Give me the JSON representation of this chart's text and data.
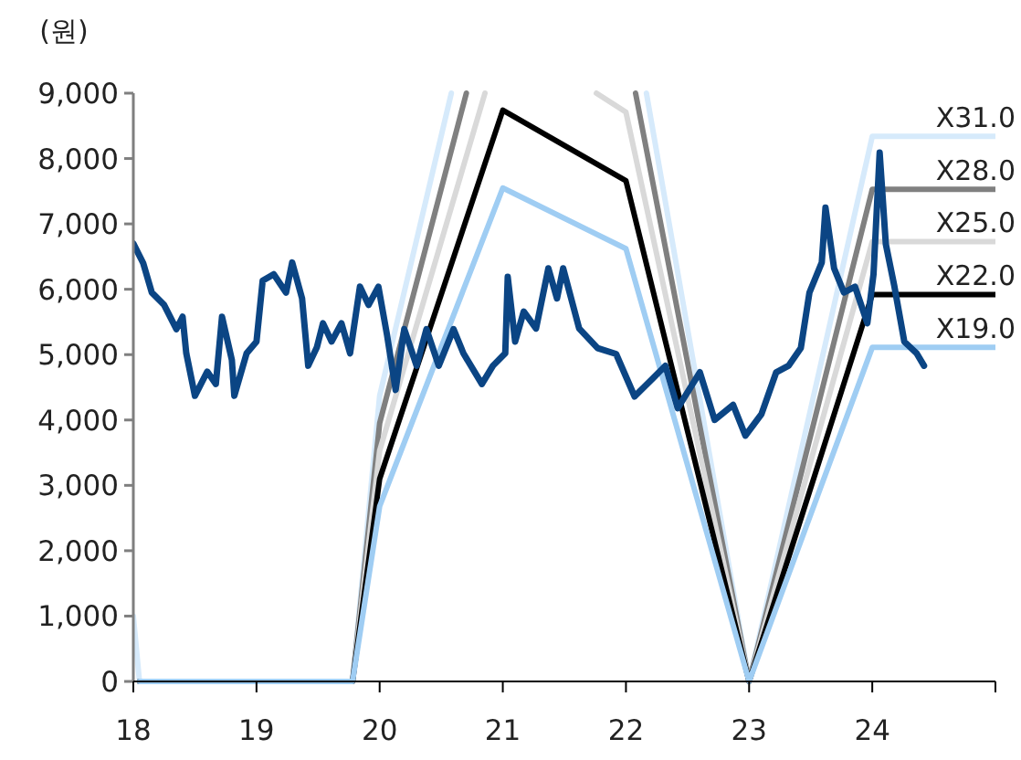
{
  "chart_data": {
    "type": "line",
    "ylabel": "(원)",
    "xlim": [
      18,
      25
    ],
    "ylim": [
      0,
      9000
    ],
    "xticks": [
      18,
      19,
      20,
      21,
      22,
      23,
      24,
      {
        "value": 25,
        "label": null
      }
    ],
    "yticks": [
      0,
      {
        "value": 1000,
        "label": "1,000"
      },
      {
        "value": 2000,
        "label": "2,000"
      },
      {
        "value": 3000,
        "label": "3,000"
      },
      {
        "value": 4000,
        "label": "4,000"
      },
      {
        "value": 5000,
        "label": "5,000"
      },
      {
        "value": 6000,
        "label": "6,000"
      },
      {
        "value": 7000,
        "label": "7,000"
      },
      {
        "value": 8000,
        "label": "8,000"
      },
      {
        "value": 9000,
        "label": "9,000"
      }
    ],
    "grid": false,
    "marker": "none",
    "line_style": "solid",
    "series": [
      {
        "name": "X31.0",
        "color": "#d6eafb",
        "x": [
          18,
          18.05,
          19.78,
          20,
          20.582,
          22.166,
          23,
          24,
          25
        ],
        "values": [
          1000,
          0,
          0,
          4370,
          9000,
          9000,
          0,
          8340,
          8340
        ]
      },
      {
        "name": "X28.0",
        "color": "#808080",
        "x": [
          18.05,
          19.78,
          20,
          20.704,
          22.078,
          23,
          24,
          25
        ],
        "values": [
          0,
          0,
          3950,
          9000,
          9000,
          0,
          7530,
          7530
        ]
      },
      {
        "name": "X25.0",
        "color": "#d9d9d9",
        "x": [
          18.05,
          19.78,
          20,
          20.855,
          21.76,
          22,
          23,
          24,
          25
        ],
        "values": [
          0,
          0,
          3530,
          9000,
          9000,
          8710,
          0,
          6730,
          6730
        ]
      },
      {
        "name": "X22.0",
        "color": "#000000",
        "x": [
          18.05,
          19.78,
          20,
          21,
          22,
          23,
          24,
          25
        ],
        "values": [
          0,
          0,
          3100,
          8740,
          7660,
          0,
          5920,
          5920
        ]
      },
      {
        "name": "X19.0",
        "color": "#9fcdf3",
        "x": [
          18.05,
          19.78,
          20,
          21,
          22,
          23,
          24,
          25
        ],
        "values": [
          0,
          0,
          2680,
          7550,
          6620,
          0,
          5110,
          5110
        ]
      },
      {
        "color": "#0b4584",
        "x": [
          18.0,
          18.08,
          18.15,
          18.25,
          18.35,
          18.4,
          18.43,
          18.5,
          18.6,
          18.67,
          18.72,
          18.8,
          18.82,
          18.92,
          19.0,
          19.05,
          19.14,
          19.24,
          19.29,
          19.37,
          19.42,
          19.49,
          19.54,
          19.61,
          19.69,
          19.76,
          19.84,
          19.91,
          19.99,
          20.06,
          20.13,
          20.2,
          20.3,
          20.38,
          20.48,
          20.6,
          20.68,
          20.83,
          20.92,
          21.02,
          21.04,
          21.1,
          21.17,
          21.27,
          21.37,
          21.44,
          21.49,
          21.62,
          21.77,
          21.92,
          22.07,
          22.22,
          22.32,
          22.42,
          22.6,
          22.72,
          22.87,
          22.97,
          23.1,
          23.22,
          23.32,
          23.42,
          23.49,
          23.59,
          23.62,
          23.69,
          23.77,
          23.86,
          23.96,
          24.01,
          24.06,
          24.11,
          24.18,
          24.26,
          24.36,
          24.42
        ],
        "values": [
          6700,
          6400,
          5950,
          5760,
          5390,
          5580,
          5020,
          4370,
          4740,
          4550,
          5580,
          4920,
          4370,
          5020,
          5200,
          6130,
          6230,
          5950,
          6410,
          5860,
          4830,
          5110,
          5480,
          5200,
          5480,
          5020,
          6040,
          5760,
          6040,
          5300,
          4460,
          5390,
          4830,
          5390,
          4830,
          5390,
          5020,
          4550,
          4830,
          5020,
          6190,
          5200,
          5660,
          5400,
          6320,
          5860,
          6320,
          5400,
          5100,
          5010,
          4360,
          4640,
          4830,
          4180,
          4730,
          4000,
          4230,
          3760,
          4090,
          4730,
          4830,
          5100,
          5950,
          6410,
          7250,
          6320,
          5950,
          6040,
          5480,
          6230,
          8090,
          6690,
          6040,
          5200,
          5020,
          4830
        ]
      }
    ]
  }
}
